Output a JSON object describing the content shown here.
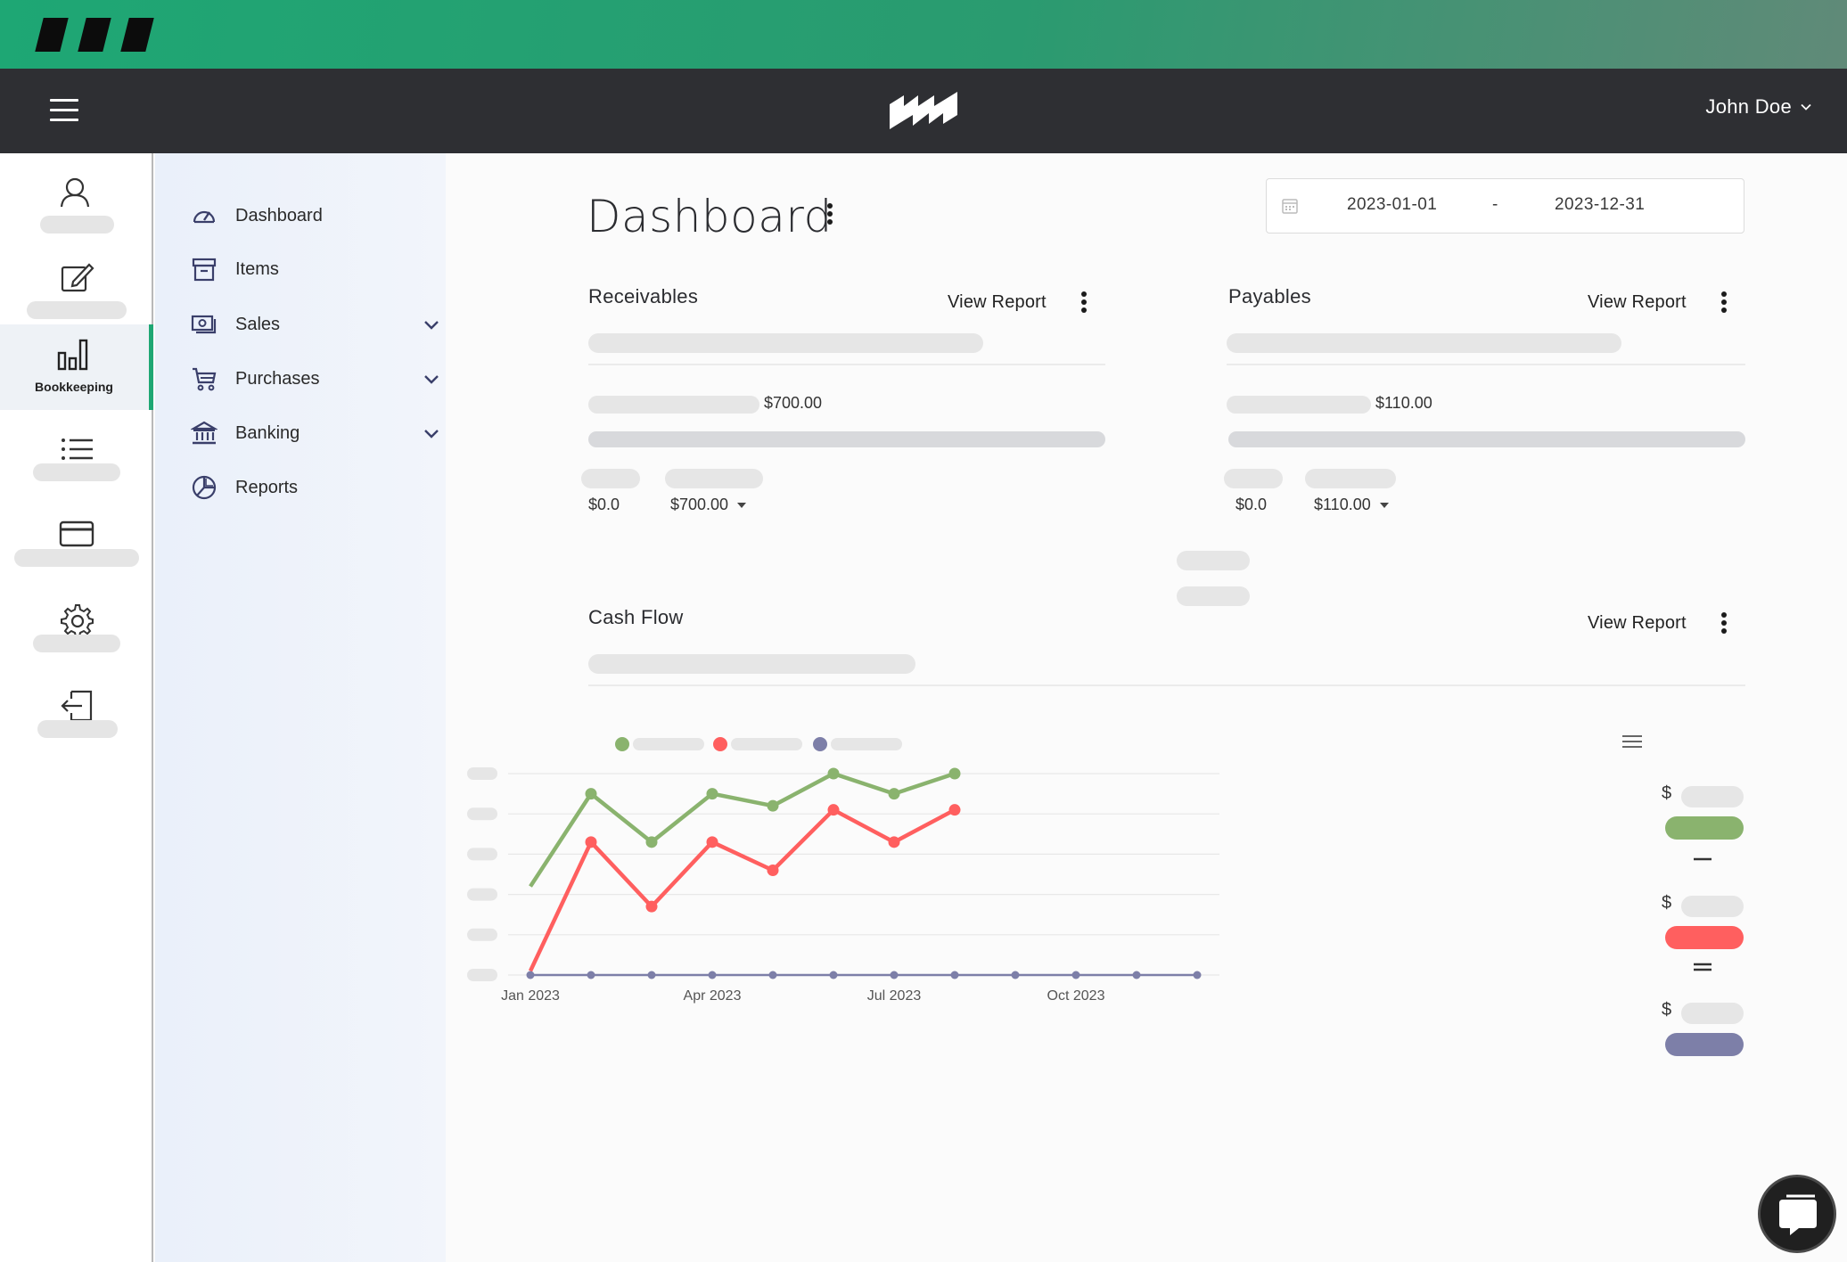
{
  "user": {
    "name": "John Doe"
  },
  "rail": {
    "active_label": "Bookkeeping"
  },
  "sidebar": {
    "items": [
      {
        "label": "Dashboard",
        "icon": "speedometer-icon",
        "expandable": false
      },
      {
        "label": "Items",
        "icon": "archive-box-icon",
        "expandable": false
      },
      {
        "label": "Sales",
        "icon": "money-icon",
        "expandable": true
      },
      {
        "label": "Purchases",
        "icon": "cart-icon",
        "expandable": true
      },
      {
        "label": "Banking",
        "icon": "bank-icon",
        "expandable": true
      },
      {
        "label": "Reports",
        "icon": "pie-chart-icon",
        "expandable": false
      }
    ]
  },
  "page": {
    "title": "Dashboard"
  },
  "date_range": {
    "start": "2023-01-01",
    "separator": "-",
    "end": "2023-12-31"
  },
  "receivables": {
    "title": "Receivables",
    "view_report": "View Report",
    "total": "$700.00",
    "split_left": "$0.0",
    "split_right": "$700.00"
  },
  "payables": {
    "title": "Payables",
    "view_report": "View Report",
    "total": "$110.00",
    "split_left": "$0.0",
    "split_right": "$110.00"
  },
  "cash_flow": {
    "title": "Cash Flow",
    "view_report": "View Report",
    "currency_symbol": "$"
  },
  "colors": {
    "incoming": "#8ab36e",
    "outgoing": "#ff5f5f",
    "profit": "#7d7fa8",
    "accent": "#1ea774"
  },
  "chart_data": {
    "type": "line",
    "x": [
      "Jan 2023",
      "Feb 2023",
      "Mar 2023",
      "Apr 2023",
      "May 2023",
      "Jun 2023",
      "Jul 2023",
      "Aug 2023",
      "Sep 2023",
      "Oct 2023",
      "Nov 2023",
      "Dec 2023"
    ],
    "xticks": [
      "Jan 2023",
      "Apr 2023",
      "Jul 2023",
      "Oct 2023"
    ],
    "ylim": [
      0,
      5
    ],
    "series": [
      {
        "color": "#8ab36e",
        "values": [
          2.2,
          4.5,
          3.3,
          4.5,
          4.2,
          5.0,
          4.5,
          5.0,
          null,
          null,
          null,
          null
        ]
      },
      {
        "color": "#ff5f5f",
        "values": [
          0.1,
          3.3,
          1.7,
          3.3,
          2.6,
          4.1,
          3.3,
          4.1,
          null,
          null,
          null,
          null
        ]
      },
      {
        "color": "#7d7fa8",
        "values": [
          0,
          0,
          0,
          0,
          0,
          0,
          0,
          0,
          0,
          0,
          0,
          0
        ]
      }
    ]
  }
}
